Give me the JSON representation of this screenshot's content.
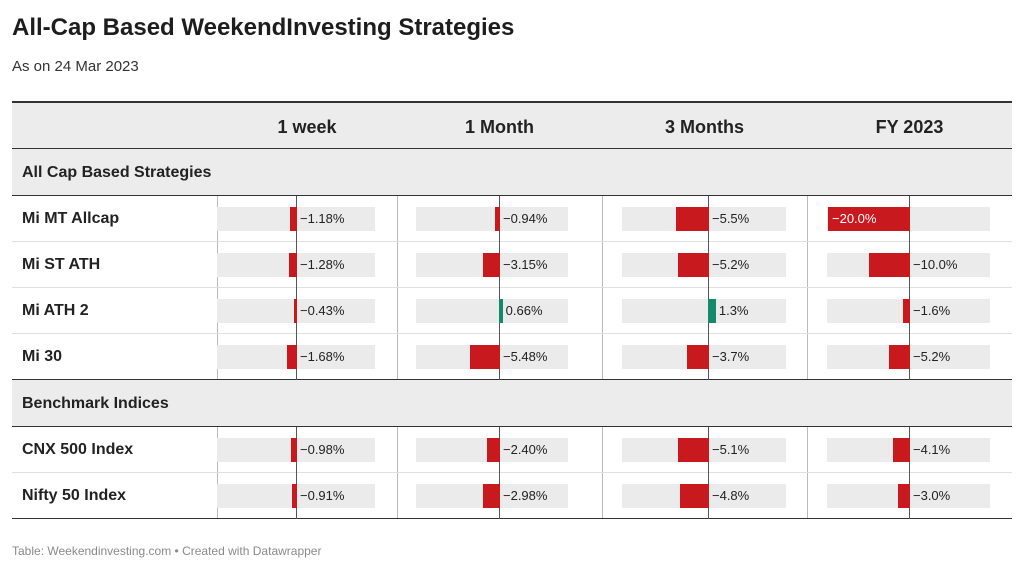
{
  "title": "All-Cap Based WeekendInvesting Strategies",
  "subtitle": "As on 24 Mar 2023",
  "footer": "Table: Weekendinvesting.com • Created with Datawrapper",
  "colors": {
    "negative": "#c8191f",
    "positive": "#138a6c",
    "bar_bg": "#ebebeb"
  },
  "chart_data": {
    "type": "table",
    "columns": [
      "1 week",
      "1 Month",
      "3 Months",
      "FY 2023"
    ],
    "column_ranges": [
      [
        -1.68,
        0
      ],
      [
        -5.48,
        0.66
      ],
      [
        -5.5,
        1.3
      ],
      [
        -20,
        0
      ]
    ],
    "groups": [
      {
        "name": "All Cap Based Strategies",
        "rows": [
          {
            "label": "Mi MT Allcap",
            "values": [
              -1.18,
              -0.94,
              -5.5,
              -20.0
            ],
            "display": [
              "−1.18%",
              "−0.94%",
              "−5.5%",
              "−20.0%"
            ]
          },
          {
            "label": "Mi ST ATH",
            "values": [
              -1.28,
              -3.15,
              -5.2,
              -10.0
            ],
            "display": [
              "−1.28%",
              "−3.15%",
              "−5.2%",
              "−10.0%"
            ]
          },
          {
            "label": "Mi ATH 2",
            "values": [
              -0.43,
              0.66,
              1.3,
              -1.6
            ],
            "display": [
              "−0.43%",
              "0.66%",
              "1.3%",
              "−1.6%"
            ]
          },
          {
            "label": "Mi 30",
            "values": [
              -1.68,
              -5.48,
              -3.7,
              -5.2
            ],
            "display": [
              "−1.68%",
              "−5.48%",
              "−3.7%",
              "−5.2%"
            ]
          }
        ]
      },
      {
        "name": "Benchmark Indices",
        "rows": [
          {
            "label": "CNX 500 Index",
            "values": [
              -0.98,
              -2.4,
              -5.1,
              -4.1
            ],
            "display": [
              "−0.98%",
              "−2.40%",
              "−5.1%",
              "−4.1%"
            ]
          },
          {
            "label": "Nifty 50 Index",
            "values": [
              -0.91,
              -2.98,
              -4.8,
              -3.0
            ],
            "display": [
              "−0.91%",
              "−2.98%",
              "−4.8%",
              "−3.0%"
            ]
          }
        ]
      }
    ]
  }
}
